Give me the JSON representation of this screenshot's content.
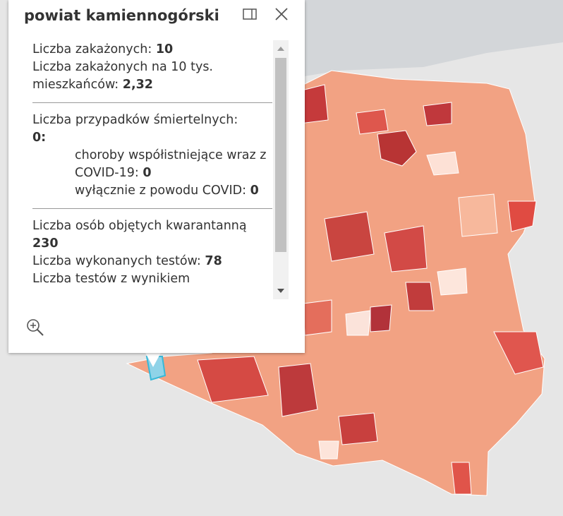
{
  "popup": {
    "title": "powiat kamiennogórski",
    "sections": [
      {
        "items": [
          {
            "label": "Liczba zakażonych:",
            "value": "10"
          },
          {
            "label": "Liczba zakażonych na 10 tys. mieszkańców:",
            "value": "2,32"
          }
        ]
      },
      {
        "items": [
          {
            "label": "Liczba przypadków śmiertelnych:",
            "value": "0:",
            "break": true
          },
          {
            "label": "choroby współistniejące wraz z COVID-19:",
            "value": "0",
            "indent": true
          },
          {
            "label": "wyłącznie z powodu COVID:",
            "value": "0",
            "indent": true
          }
        ]
      },
      {
        "items": [
          {
            "label": "Liczba osób objętych kwarantanną",
            "value": "230"
          },
          {
            "label": "Liczba wykonanych testów:",
            "value": "78"
          },
          {
            "label": "Liczba testów z wynikiem"
          }
        ]
      }
    ]
  }
}
